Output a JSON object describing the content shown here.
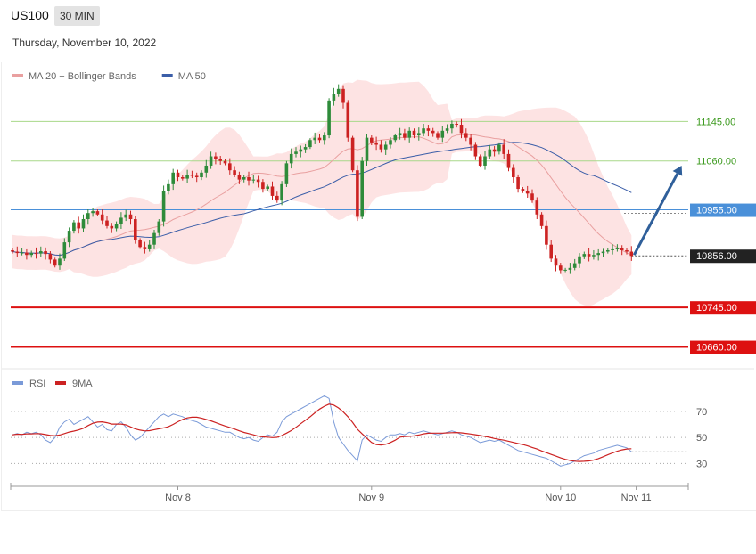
{
  "header": {
    "symbol": "US100",
    "timeframe": "30 MIN",
    "date": "Thursday, November 10, 2022"
  },
  "colors": {
    "bull": "#2e8b3a",
    "bear": "#cc2222",
    "ma20": "#e9a0a0",
    "bands_fill": "#fde3e3",
    "ma50": "#3b5ea8",
    "resistance": "#a8d88a",
    "resistance_text": "#3c9a1e",
    "pivot": "#4a90d9",
    "support": "#dd1111",
    "arrow": "#2f5f9a",
    "rsi": "#7a9ad8",
    "rsi_ma": "#cc2222"
  },
  "chart_data": [
    {
      "type": "candlestick",
      "legend": [
        {
          "label": "MA 20 + Bollinger Bands",
          "color": "#e9a0a0"
        },
        {
          "label": "MA 50",
          "color": "#3b5ea8"
        }
      ],
      "legend_position": "top-left",
      "grid": false,
      "y_range": [
        10640,
        11230
      ],
      "x_tick_labels": [
        {
          "label": "Nov 8",
          "index": 35
        },
        {
          "label": "Nov 9",
          "index": 76
        },
        {
          "label": "Nov 10",
          "index": 116
        },
        {
          "label": "Nov 11",
          "index": 132
        }
      ],
      "levels": [
        {
          "value": 11145.0,
          "label": "11145.00",
          "kind": "resistance"
        },
        {
          "value": 11060.0,
          "label": "11060.00",
          "kind": "resistance"
        },
        {
          "value": 10955.0,
          "label": "10955.00",
          "kind": "pivot"
        },
        {
          "value": 10856.0,
          "label": "10856.00",
          "kind": "current"
        },
        {
          "value": 10745.0,
          "label": "10745.00",
          "kind": "support"
        },
        {
          "value": 10660.0,
          "label": "10660.00",
          "kind": "support"
        }
      ],
      "arrow": {
        "from_index": 131,
        "from_value": 10858,
        "to_index": 142,
        "to_value": 11050
      },
      "close": [
        10865,
        10862,
        10863,
        10858,
        10862,
        10861,
        10866,
        10860,
        10848,
        10835,
        10850,
        10885,
        10910,
        10928,
        10915,
        10935,
        10948,
        10952,
        10945,
        10932,
        10920,
        10915,
        10925,
        10938,
        10945,
        10935,
        10890,
        10875,
        10870,
        10880,
        10905,
        10930,
        10995,
        11010,
        11035,
        11025,
        11022,
        11030,
        11028,
        11025,
        11035,
        11050,
        11070,
        11065,
        11060,
        11055,
        11040,
        11030,
        11020,
        11025,
        11018,
        11020,
        11015,
        11000,
        11005,
        10985,
        10975,
        11010,
        11055,
        11075,
        11080,
        11085,
        11090,
        11105,
        11110,
        11105,
        11115,
        11190,
        11205,
        11215,
        11185,
        11110,
        11040,
        10940,
        11060,
        11110,
        11100,
        11095,
        11085,
        11095,
        11105,
        11115,
        11120,
        11110,
        11125,
        11115,
        11120,
        11130,
        11125,
        11120,
        11110,
        11125,
        11130,
        11140,
        11138,
        11120,
        11110,
        11095,
        11070,
        11050,
        11070,
        11085,
        11080,
        11095,
        11075,
        11045,
        11025,
        11000,
        10995,
        10990,
        10975,
        10945,
        10920,
        10880,
        10850,
        10835,
        10825,
        10826,
        10830,
        10840,
        10855,
        10860,
        10855,
        10858,
        10862,
        10865,
        10868,
        10870,
        10872,
        10868,
        10865,
        10856
      ],
      "rsi": {
        "legend": [
          {
            "label": "RSI",
            "color": "#7a9ad8"
          },
          {
            "label": "9MA",
            "color": "#cc2222"
          }
        ],
        "y_range": [
          20,
          85
        ],
        "levels": [
          {
            "value": 70,
            "label": "70"
          },
          {
            "value": 50,
            "label": "50"
          },
          {
            "value": 30,
            "label": "30"
          }
        ],
        "current_value": 39,
        "values": [
          52,
          53,
          52,
          54,
          53,
          54,
          52,
          48,
          46,
          50,
          58,
          62,
          64,
          60,
          62,
          64,
          66,
          62,
          58,
          60,
          56,
          55,
          60,
          62,
          58,
          52,
          48,
          50,
          54,
          58,
          62,
          66,
          68,
          66,
          68,
          67,
          66,
          64,
          63,
          62,
          60,
          58,
          57,
          56,
          55,
          54,
          54,
          52,
          50,
          49,
          50,
          48,
          47,
          50,
          52,
          51,
          54,
          62,
          66,
          68,
          70,
          72,
          74,
          76,
          78,
          80,
          82,
          80,
          62,
          50,
          45,
          40,
          36,
          32,
          48,
          52,
          50,
          48,
          47,
          50,
          52,
          52,
          53,
          52,
          54,
          53,
          54,
          55,
          54,
          53,
          52,
          53,
          54,
          55,
          54,
          52,
          51,
          50,
          48,
          46,
          47,
          48,
          47,
          48,
          46,
          44,
          42,
          40,
          39,
          38,
          37,
          36,
          35,
          34,
          32,
          30,
          28,
          29,
          30,
          32,
          34,
          36,
          37,
          38,
          40,
          41,
          42,
          43,
          44,
          43,
          42,
          39
        ]
      }
    }
  ]
}
